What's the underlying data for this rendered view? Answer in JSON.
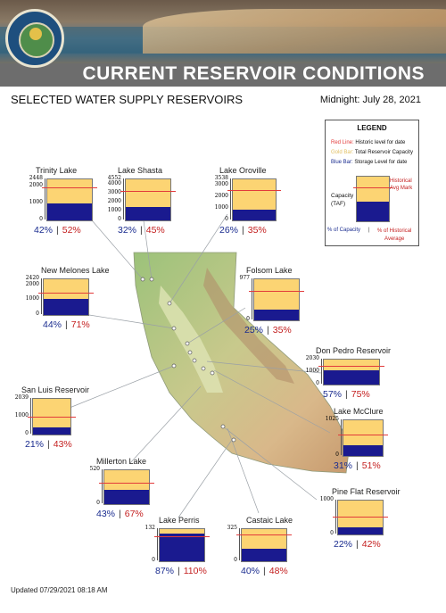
{
  "banner": {
    "title": "CURRENT RESERVOIR CONDITIONS",
    "seal_text": "DEPARTMENT OF WATER RESOURCES · STATE OF CALIFORNIA"
  },
  "header": {
    "left": "SELECTED WATER SUPPLY RESERVOIRS",
    "right": "Midnight: July 28, 2021"
  },
  "legend": {
    "title": "LEGEND",
    "red_key": "Red Line:",
    "red_text": "Historic level for date",
    "gold_key": "Gold Bar:",
    "gold_text": "Total Reservoir Capacity",
    "blue_key": "Blue Bar:",
    "blue_text": "Storage Level for date",
    "capacity_label_1": "Capacity",
    "capacity_label_2": "(TAF)",
    "historical_label_1": "Historical",
    "historical_label_2": "Avg Mark",
    "foot_cap": "% of Capacity",
    "foot_sep": "|",
    "foot_hist_1": "% of Historical",
    "foot_hist_2": "Average"
  },
  "colors": {
    "capacity": "#fcd473",
    "storage": "#1a1a8f",
    "historic": "#e23b3b",
    "pct_capacity": "#1a2c8f",
    "pct_historical": "#c42020"
  },
  "reservoirs": [
    {
      "name": "Trinity Lake",
      "ticks": [
        "2448",
        "2000",
        "1000",
        "0"
      ],
      "capacity_taf": 2448,
      "pct_capacity": "42%",
      "pct_historical": "52%",
      "storage_frac": 0.42,
      "hist_frac": 0.81
    },
    {
      "name": "Lake Shasta",
      "ticks": [
        "4552",
        "4000",
        "3000",
        "2000",
        "1000",
        "0"
      ],
      "capacity_taf": 4552,
      "pct_capacity": "32%",
      "pct_historical": "45%",
      "storage_frac": 0.32,
      "hist_frac": 0.71
    },
    {
      "name": "Lake Oroville",
      "ticks": [
        "3538",
        "3000",
        "2000",
        "1000",
        "0"
      ],
      "capacity_taf": 3538,
      "pct_capacity": "26%",
      "pct_historical": "35%",
      "storage_frac": 0.26,
      "hist_frac": 0.74
    },
    {
      "name": "New Melones Lake",
      "ticks": [
        "2420",
        "2000",
        "1000",
        "0"
      ],
      "capacity_taf": 2420,
      "pct_capacity": "44%",
      "pct_historical": "71%",
      "storage_frac": 0.44,
      "hist_frac": 0.62
    },
    {
      "name": "Folsom Lake",
      "ticks": [
        "977",
        "0"
      ],
      "capacity_taf": 977,
      "pct_capacity": "25%",
      "pct_historical": "35%",
      "storage_frac": 0.25,
      "hist_frac": 0.71
    },
    {
      "name": "Don Pedro Reservoir",
      "ticks": [
        "2030",
        "1000",
        "0"
      ],
      "capacity_taf": 2030,
      "pct_capacity": "57%",
      "pct_historical": "75%",
      "storage_frac": 0.57,
      "hist_frac": 0.76
    },
    {
      "name": "San Luis Reservoir",
      "ticks": [
        "2039",
        "1000",
        "0"
      ],
      "capacity_taf": 2039,
      "pct_capacity": "21%",
      "pct_historical": "43%",
      "storage_frac": 0.21,
      "hist_frac": 0.49
    },
    {
      "name": "Lake McClure",
      "ticks": [
        "1025",
        "0"
      ],
      "capacity_taf": 1025,
      "pct_capacity": "31%",
      "pct_historical": "51%",
      "storage_frac": 0.31,
      "hist_frac": 0.61
    },
    {
      "name": "Millerton Lake",
      "ticks": [
        "520",
        "0"
      ],
      "capacity_taf": 520,
      "pct_capacity": "43%",
      "pct_historical": "67%",
      "storage_frac": 0.43,
      "hist_frac": 0.64
    },
    {
      "name": "Pine Flat Reservoir",
      "ticks": [
        "1000",
        "0"
      ],
      "capacity_taf": 1000,
      "pct_capacity": "22%",
      "pct_historical": "42%",
      "storage_frac": 0.22,
      "hist_frac": 0.52
    },
    {
      "name": "Lake Perris",
      "ticks": [
        "132",
        "0"
      ],
      "capacity_taf": 132,
      "pct_capacity": "87%",
      "pct_historical": "110%",
      "storage_frac": 0.87,
      "hist_frac": 0.79
    },
    {
      "name": "Castaic Lake",
      "ticks": [
        "325",
        "0"
      ],
      "capacity_taf": 325,
      "pct_capacity": "40%",
      "pct_historical": "48%",
      "storage_frac": 0.4,
      "hist_frac": 0.83
    }
  ],
  "footer": "Updated 07/29/2021 08:18 AM"
}
